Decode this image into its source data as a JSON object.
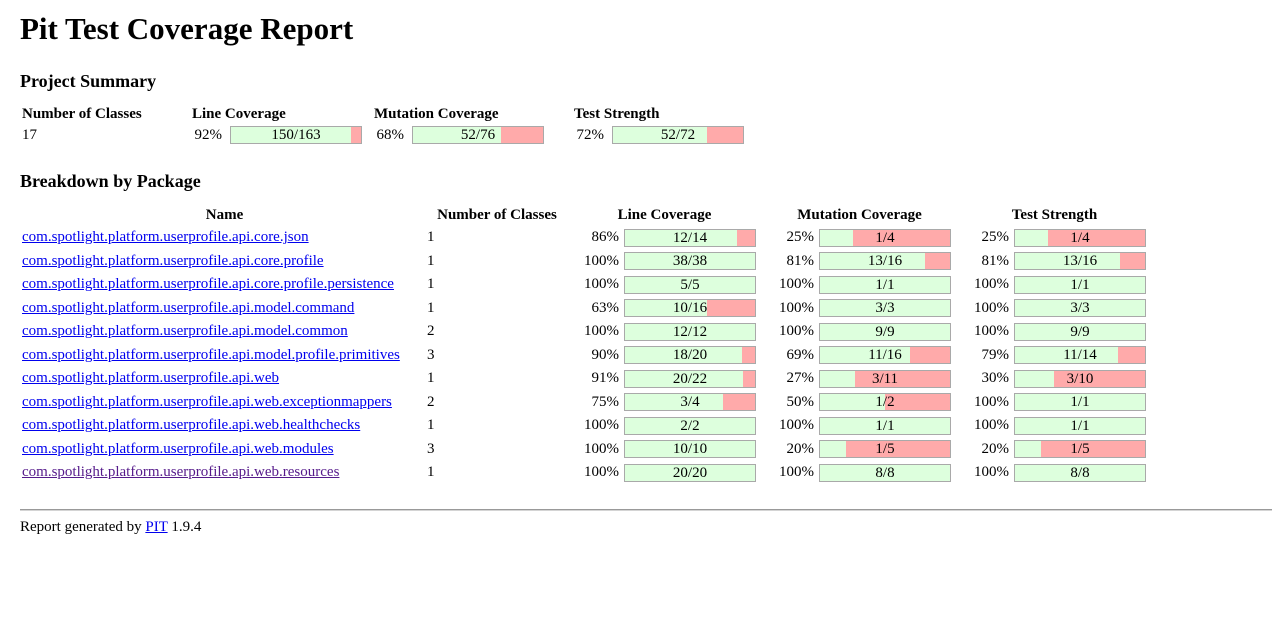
{
  "title": "Pit Test Coverage Report",
  "summary": {
    "heading": "Project Summary",
    "headers": [
      "Number of Classes",
      "Line Coverage",
      "Mutation Coverage",
      "Test Strength"
    ],
    "classes": "17",
    "line": {
      "pct": "92%",
      "text": "150/163",
      "ratio": 0.92
    },
    "mutation": {
      "pct": "68%",
      "text": "52/76",
      "ratio": 0.68
    },
    "strength": {
      "pct": "72%",
      "text": "52/72",
      "ratio": 0.72
    }
  },
  "breakdown": {
    "heading": "Breakdown by Package",
    "headers": [
      "Name",
      "Number of Classes",
      "Line Coverage",
      "Mutation Coverage",
      "Test Strength"
    ],
    "packages": [
      {
        "name": "com.spotlight.platform.userprofile.api.core.json",
        "classes": "1",
        "line": {
          "pct": "86%",
          "text": "12/14",
          "ratio": 0.86
        },
        "mutation": {
          "pct": "25%",
          "text": "1/4",
          "ratio": 0.25
        },
        "strength": {
          "pct": "25%",
          "text": "1/4",
          "ratio": 0.25
        }
      },
      {
        "name": "com.spotlight.platform.userprofile.api.core.profile",
        "classes": "1",
        "line": {
          "pct": "100%",
          "text": "38/38",
          "ratio": 1.0
        },
        "mutation": {
          "pct": "81%",
          "text": "13/16",
          "ratio": 0.81
        },
        "strength": {
          "pct": "81%",
          "text": "13/16",
          "ratio": 0.81
        }
      },
      {
        "name": "com.spotlight.platform.userprofile.api.core.profile.persistence",
        "classes": "1",
        "line": {
          "pct": "100%",
          "text": "5/5",
          "ratio": 1.0
        },
        "mutation": {
          "pct": "100%",
          "text": "1/1",
          "ratio": 1.0
        },
        "strength": {
          "pct": "100%",
          "text": "1/1",
          "ratio": 1.0
        }
      },
      {
        "name": "com.spotlight.platform.userprofile.api.model.command",
        "classes": "1",
        "line": {
          "pct": "63%",
          "text": "10/16",
          "ratio": 0.63
        },
        "mutation": {
          "pct": "100%",
          "text": "3/3",
          "ratio": 1.0
        },
        "strength": {
          "pct": "100%",
          "text": "3/3",
          "ratio": 1.0
        }
      },
      {
        "name": "com.spotlight.platform.userprofile.api.model.common",
        "classes": "2",
        "line": {
          "pct": "100%",
          "text": "12/12",
          "ratio": 1.0
        },
        "mutation": {
          "pct": "100%",
          "text": "9/9",
          "ratio": 1.0
        },
        "strength": {
          "pct": "100%",
          "text": "9/9",
          "ratio": 1.0
        }
      },
      {
        "name": "com.spotlight.platform.userprofile.api.model.profile.primitives",
        "classes": "3",
        "line": {
          "pct": "90%",
          "text": "18/20",
          "ratio": 0.9
        },
        "mutation": {
          "pct": "69%",
          "text": "11/16",
          "ratio": 0.69
        },
        "strength": {
          "pct": "79%",
          "text": "11/14",
          "ratio": 0.79
        }
      },
      {
        "name": "com.spotlight.platform.userprofile.api.web",
        "classes": "1",
        "line": {
          "pct": "91%",
          "text": "20/22",
          "ratio": 0.91
        },
        "mutation": {
          "pct": "27%",
          "text": "3/11",
          "ratio": 0.27
        },
        "strength": {
          "pct": "30%",
          "text": "3/10",
          "ratio": 0.3
        }
      },
      {
        "name": "com.spotlight.platform.userprofile.api.web.exceptionmappers",
        "classes": "2",
        "line": {
          "pct": "75%",
          "text": "3/4",
          "ratio": 0.75
        },
        "mutation": {
          "pct": "50%",
          "text": "1/2",
          "ratio": 0.5
        },
        "strength": {
          "pct": "100%",
          "text": "1/1",
          "ratio": 1.0
        }
      },
      {
        "name": "com.spotlight.platform.userprofile.api.web.healthchecks",
        "classes": "1",
        "line": {
          "pct": "100%",
          "text": "2/2",
          "ratio": 1.0
        },
        "mutation": {
          "pct": "100%",
          "text": "1/1",
          "ratio": 1.0
        },
        "strength": {
          "pct": "100%",
          "text": "1/1",
          "ratio": 1.0
        }
      },
      {
        "name": "com.spotlight.platform.userprofile.api.web.modules",
        "classes": "3",
        "line": {
          "pct": "100%",
          "text": "10/10",
          "ratio": 1.0
        },
        "mutation": {
          "pct": "20%",
          "text": "1/5",
          "ratio": 0.2
        },
        "strength": {
          "pct": "20%",
          "text": "1/5",
          "ratio": 0.2
        }
      },
      {
        "name": "com.spotlight.platform.userprofile.api.web.resources",
        "classes": "1",
        "visited": true,
        "line": {
          "pct": "100%",
          "text": "20/20",
          "ratio": 1.0
        },
        "mutation": {
          "pct": "100%",
          "text": "8/8",
          "ratio": 1.0
        },
        "strength": {
          "pct": "100%",
          "text": "8/8",
          "ratio": 1.0
        }
      }
    ]
  },
  "footer": {
    "prefix": "Report generated by",
    "link": "PIT",
    "version": "1.9.4"
  },
  "colors": {
    "covered": "#ddffdd",
    "uncovered": "#ffaaaa",
    "link": "#0000ee",
    "visited": "#551a8b"
  }
}
